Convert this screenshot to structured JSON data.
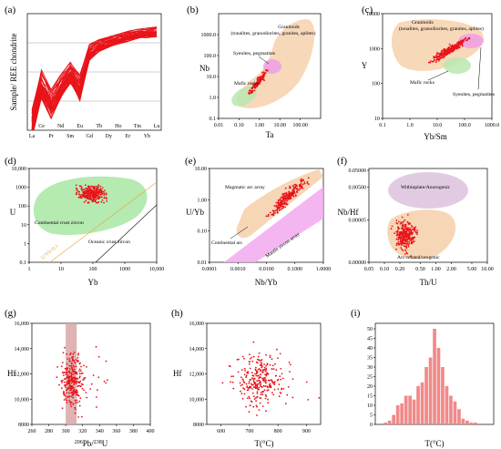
{
  "figure": {
    "colors": {
      "data": "#e8141a",
      "felsic": "#f6d1ad",
      "syenite": "#ee9fe6",
      "mafic": "#b9e8b0",
      "continental": "#a8e6a3",
      "hist_bar": "#f08a8a",
      "band": "#d9a6a6",
      "withinplate": "#dcc2dd",
      "magmatic_arc": "#f6d1ad",
      "mantle_zircon": "#f2a9ef"
    },
    "panels": {
      "a": {
        "label": "(a)",
        "ylabel": "Sample/ REE chondrite",
        "xticks_bottom": [
          "La",
          "Pr",
          "Sm",
          "Gd",
          "Dy",
          "Er",
          "Yb"
        ],
        "xticks_top": [
          "Ce",
          "Nd",
          "Eu",
          "Tb",
          "Ho",
          "Tm",
          "Lu"
        ]
      },
      "b": {
        "label": "(b)",
        "xlabel": "Ta",
        "ylabel": "Nb",
        "xticks": [
          "0.01",
          "0.10",
          "1.00",
          "10.00",
          "100.00"
        ],
        "yticks": [
          "0.1",
          "1.0",
          "10.0",
          "100.0",
          "1000.0"
        ],
        "ann_granitoids": "Granitoids",
        "ann_granitoids_sub": "(tonalites, granodiorites, granites, aplites)",
        "ann_syenites": "Syenites, pegmatites",
        "ann_mafic": "Mafic rocks"
      },
      "c": {
        "label": "(c)",
        "xlabel": "Yb/Sm",
        "ylabel": "Y",
        "xticks": [
          "0.1",
          "1.0",
          "10.0",
          "100.0",
          "1000.0"
        ],
        "yticks": [
          "10",
          "100",
          "1000",
          "10000"
        ],
        "ann_granitoids": "Granitoids",
        "ann_granitoids_sub": "(tonalites, granodiorites, granites, aplites)",
        "ann_mafic": "Mafic rocks",
        "ann_syenites": "Syenites, pegmatites"
      },
      "d": {
        "label": "(d)",
        "xlabel": "Yb",
        "ylabel": "U",
        "xticks": [
          "1",
          "10",
          "100",
          "1000",
          "10,000"
        ],
        "yticks": [
          "0.1",
          "1",
          "10",
          "100",
          "1000",
          "10,000"
        ],
        "ann_continental": "Continental crust zircon",
        "ann_oceanic": "Oceanic crust zircon",
        "ann_ratio": "U/Yb=0.1"
      },
      "e": {
        "label": "(e)",
        "xlabel": "Nb/Yb",
        "ylabel": "U/Yb",
        "xticks": [
          "0.0001",
          "0.0010",
          "0.0100",
          "0.1000",
          "1.0000"
        ],
        "yticks": [
          "0.01",
          "0.10",
          "1.00",
          "10.00"
        ],
        "ann_magmatic": "Magmatic arc array",
        "ann_continental": "Continental arc",
        "ann_mantle": "Mantle zircon array"
      },
      "f": {
        "label": "(f)",
        "xlabel": "Th/U",
        "ylabel": "Nb/Hf",
        "xticks": [
          "0.05",
          "0.10",
          "0.20",
          "0.50",
          "1.00",
          "2.00",
          "5.00",
          "10.00"
        ],
        "yticks": [
          "0.00000",
          "0.00005",
          "0.00500",
          "0.05000"
        ],
        "ann_within": "Withinplate/Anorogenic",
        "ann_arc": "Arc-related/orogenic"
      },
      "g": {
        "label": "(g)",
        "xlabel": "Pb/U",
        "xlabel_sup1": "206",
        "xlabel_sup2": "238",
        "ylabel": "Hf",
        "xticks": [
          "260",
          "280",
          "300",
          "320",
          "340",
          "360",
          "380",
          "400"
        ],
        "yticks": [
          "8000",
          "10,000",
          "12,000",
          "14,000",
          "16,000"
        ]
      },
      "h": {
        "label": "(h)",
        "xlabel": "T(°C)",
        "ylabel": "Hf",
        "xticks": [
          "600",
          "700",
          "800",
          "900"
        ],
        "yticks": [
          "8000",
          "10,000",
          "12,000",
          "14,000",
          "16,000"
        ]
      },
      "i": {
        "label": "(i)",
        "xlabel": "T(°C)",
        "yticks": [
          "0",
          "5",
          "10",
          "15",
          "20",
          "25",
          "30",
          "35",
          "40",
          "45",
          "50"
        ]
      }
    }
  },
  "chart_data": [
    {
      "panel": "a",
      "type": "line",
      "yscale": "log",
      "ylim": [
        1,
        10000
      ],
      "x": [
        "La",
        "Ce",
        "Pr",
        "Nd",
        "Sm",
        "Eu",
        "Gd",
        "Tb",
        "Dy",
        "Ho",
        "Er",
        "Tm",
        "Yb",
        "Lu"
      ],
      "envelope_low": [
        0.5,
        12,
        2.5,
        12,
        40,
        10,
        250,
        500,
        700,
        900,
        1100,
        1400,
        1500,
        1600
      ],
      "envelope_high": [
        5,
        120,
        25,
        80,
        220,
        80,
        900,
        1300,
        1600,
        2000,
        2500,
        2900,
        3200,
        3500
      ],
      "typical": [
        1,
        40,
        6,
        30,
        90,
        35,
        420,
        800,
        1050,
        1300,
        1550,
        1900,
        2100,
        2300
      ]
    },
    {
      "panel": "b",
      "type": "scatter",
      "xscale": "log",
      "yscale": "log",
      "xlim": [
        0.01,
        1000
      ],
      "ylim": [
        0.1,
        10000
      ],
      "x_range": [
        0.3,
        2.5
      ],
      "y_range": [
        1.5,
        20
      ],
      "n": 150
    },
    {
      "panel": "c",
      "type": "scatter",
      "xscale": "log",
      "yscale": "log",
      "xlim": [
        0.1,
        1000
      ],
      "ylim": [
        10,
        10000
      ],
      "x_range": [
        5,
        150
      ],
      "y_range": [
        400,
        2000
      ],
      "n": 300
    },
    {
      "panel": "d",
      "type": "scatter",
      "xscale": "log",
      "yscale": "log",
      "xlim": [
        1,
        10000
      ],
      "ylim": [
        0.1,
        10000
      ],
      "x_range": [
        30,
        300
      ],
      "y_range": [
        150,
        1300
      ],
      "n": 300
    },
    {
      "panel": "e",
      "type": "scatter",
      "xscale": "log",
      "yscale": "log",
      "xlim": [
        0.0001,
        1
      ],
      "ylim": [
        0.01,
        10
      ],
      "x_range": [
        0.01,
        0.3
      ],
      "y_range": [
        0.3,
        5
      ],
      "n": 250
    },
    {
      "panel": "f",
      "type": "scatter",
      "xscale": "log",
      "xlim": [
        0.05,
        10
      ],
      "center_x": 0.25,
      "n": 300
    },
    {
      "panel": "g",
      "type": "scatter",
      "xlim": [
        260,
        400
      ],
      "ylim": [
        8000,
        16000
      ],
      "x_range": [
        295,
        320
      ],
      "y_range": [
        9500,
        13500
      ],
      "band": [
        300,
        313
      ],
      "n": 300
    },
    {
      "panel": "h",
      "type": "scatter",
      "xlim": [
        550,
        950
      ],
      "ylim": [
        8000,
        16000
      ],
      "x_range": [
        650,
        820
      ],
      "y_range": [
        9500,
        13500
      ],
      "n": 300
    },
    {
      "panel": "i",
      "type": "bar",
      "ylim": [
        0,
        50
      ],
      "values": [
        0,
        0,
        1,
        2,
        5,
        10,
        11,
        15,
        15,
        13,
        20,
        22,
        30,
        35,
        50,
        40,
        30,
        20,
        15,
        12,
        8,
        3,
        2,
        1,
        1,
        0,
        0,
        0,
        0
      ]
    }
  ]
}
